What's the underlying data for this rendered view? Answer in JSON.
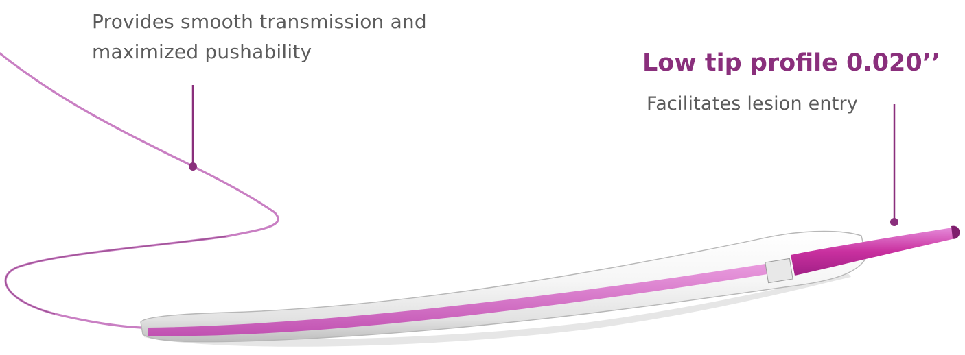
{
  "shaft_callout": {
    "description": "Provides smooth transmission and maximized pushability"
  },
  "tip_callout": {
    "title": "Low tip profile 0.020’’",
    "description": "Facilitates lesion entry"
  },
  "colors": {
    "accent_purple": "#8a2f7c",
    "catheter_pink": "#d24cc2",
    "wire_pink": "#c97fc3",
    "balloon_shadow": "#cfcfcf",
    "text_gray": "#5b5b5b"
  }
}
